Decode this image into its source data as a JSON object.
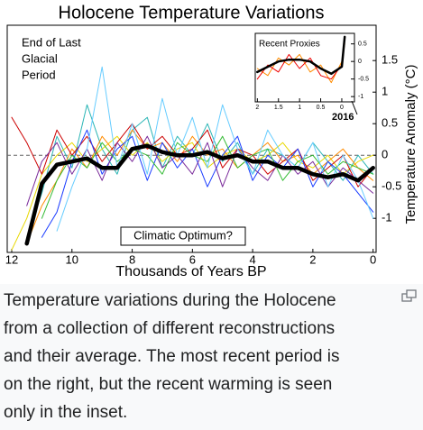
{
  "chart_data": [
    {
      "type": "line",
      "title": "Holocene Temperature Variations",
      "x_label": "Thousands of Years BP",
      "y_label": "Temperature Anomaly (°C)",
      "annotation_lines": [
        "End of Last",
        "Glacial",
        "Period"
      ],
      "callout": "Climatic Optimum?",
      "x": [
        12,
        11.5,
        11,
        10.5,
        10,
        9.5,
        9,
        8.5,
        8,
        7.5,
        7,
        6.5,
        6,
        5.5,
        5,
        4.5,
        4,
        3.5,
        3,
        2.5,
        2,
        1.5,
        1,
        0.5,
        0
      ],
      "xlim": [
        12.15,
        -0.1
      ],
      "xticks": [
        12,
        10,
        8,
        6,
        4,
        2,
        0
      ],
      "ylim": [
        -1.54,
        2.06
      ],
      "yticks": [
        1.5,
        1,
        0.5,
        0,
        -0.5,
        -1
      ],
      "zero_line": true,
      "series": [
        {
          "color": "#2ab5b5",
          "values": [
            null,
            -1.3,
            -0.6,
            0.3,
            -0.2,
            0.8,
            0.1,
            -0.3,
            0.4,
            0.6,
            -0.2,
            0.3,
            0.0,
            0.5,
            -0.1,
            0.2,
            -0.3,
            0.1,
            0.0,
            -0.2,
            0.2,
            -0.1,
            -0.4,
            0.0,
            -0.3
          ]
        },
        {
          "color": "#e8d800",
          "values": [
            -1.5,
            -1.0,
            -0.3,
            0.0,
            0.2,
            -0.1,
            0.1,
            0.3,
            0.0,
            0.2,
            -0.1,
            0.1,
            0.2,
            -0.2,
            0.0,
            0.1,
            -0.1,
            0.0,
            0.2,
            -0.1,
            -0.2,
            0.0,
            -0.3,
            -0.1,
            0.0
          ]
        },
        {
          "color": "#ff8c00",
          "values": [
            null,
            -1.4,
            -0.8,
            -0.4,
            0.1,
            -0.2,
            0.3,
            0.0,
            0.4,
            0.1,
            0.2,
            -0.1,
            0.3,
            0.0,
            0.1,
            -0.2,
            0.0,
            0.2,
            -0.1,
            0.0,
            -0.3,
            -0.1,
            0.1,
            -0.2,
            -0.4
          ]
        },
        {
          "color": "#cc0000",
          "values": [
            0.6,
            0.2,
            -0.3,
            0.4,
            0.0,
            0.3,
            -0.1,
            0.2,
            0.5,
            0.1,
            0.3,
            0.0,
            0.1,
            0.4,
            -0.2,
            0.1,
            0.0,
            -0.3,
            -0.1,
            0.1,
            -0.4,
            -0.2,
            0.0,
            -0.5,
            -0.2
          ]
        },
        {
          "color": "#1a3cff",
          "values": [
            null,
            null,
            -1.3,
            -0.9,
            -0.1,
            0.4,
            -0.3,
            0.1,
            0.3,
            -0.4,
            0.2,
            -0.2,
            0.1,
            -0.5,
            0.0,
            0.3,
            -0.4,
            0.0,
            -0.2,
            0.1,
            -0.5,
            -0.1,
            -0.3,
            -0.6,
            -0.9
          ]
        },
        {
          "color": "#7a2a9a",
          "values": [
            null,
            -0.8,
            -0.1,
            0.2,
            -0.3,
            0.1,
            -0.4,
            0.2,
            -0.1,
            0.3,
            -0.2,
            0.0,
            -0.3,
            0.2,
            -0.5,
            0.1,
            -0.2,
            -0.4,
            0.0,
            -0.3,
            -0.1,
            -0.5,
            -0.2,
            -0.4,
            -0.6
          ]
        },
        {
          "color": "#33bb33",
          "values": [
            null,
            null,
            -1.0,
            -0.4,
            0.0,
            -0.2,
            0.2,
            -0.1,
            0.1,
            0.0,
            -0.3,
            0.2,
            0.0,
            -0.1,
            0.3,
            -0.2,
            0.0,
            0.1,
            -0.4,
            -0.1,
            0.0,
            -0.3,
            -0.1,
            -0.2,
            -0.3
          ]
        },
        {
          "color": "#66ccff",
          "values": [
            null,
            null,
            null,
            -1.2,
            -0.5,
            0.1,
            1.4,
            -0.2,
            0.5,
            -0.3,
            0.9,
            0.0,
            0.6,
            -0.2,
            0.8,
            0.1,
            -0.3,
            0.4,
            0.0,
            -0.2,
            0.2,
            -0.5,
            0.0,
            -0.4,
            -1.0
          ]
        },
        {
          "color": "#000000",
          "values": [
            null,
            -1.4,
            -0.45,
            -0.15,
            -0.1,
            -0.05,
            -0.2,
            -0.2,
            0.1,
            0.15,
            0.05,
            0.0,
            0.0,
            0.05,
            -0.05,
            0.0,
            -0.1,
            -0.1,
            -0.2,
            -0.2,
            -0.3,
            -0.35,
            -0.3,
            -0.4,
            -0.2
          ]
        }
      ]
    },
    {
      "type": "line",
      "title": "Recent Proxies",
      "callout": "2016",
      "x": [
        2,
        1.75,
        1.5,
        1.25,
        1,
        0.75,
        0.5,
        0.25,
        0,
        -0.07
      ],
      "xlim": [
        2.05,
        -0.3
      ],
      "xticks": [
        2,
        1.5,
        1,
        0.5,
        0
      ],
      "ylim": [
        -1.15,
        0.8
      ],
      "yticks": [
        0.5,
        0,
        -0.5,
        -1
      ],
      "series": [
        {
          "color": "#ff8c00",
          "values": [
            -0.2,
            -0.4,
            0.1,
            -0.1,
            0.2,
            -0.3,
            -0.1,
            -0.6,
            0.0,
            0.5
          ]
        },
        {
          "color": "#ee0000",
          "values": [
            -0.5,
            -0.1,
            -0.3,
            0.2,
            -0.2,
            0.1,
            -0.4,
            -0.5,
            -0.1,
            0.7
          ]
        },
        {
          "color": "#000000",
          "values": [
            -0.3,
            -0.15,
            0,
            0.05,
            0.05,
            0,
            -0.2,
            -0.35,
            -0.15,
            0.7
          ]
        }
      ]
    }
  ],
  "caption": {
    "lines": [
      "Temperature variations during the Holocene",
      "from a collection of different reconstructions",
      "and their average. The most recent period is",
      "on the right, but the recent warming is seen",
      "only in the inset."
    ]
  }
}
